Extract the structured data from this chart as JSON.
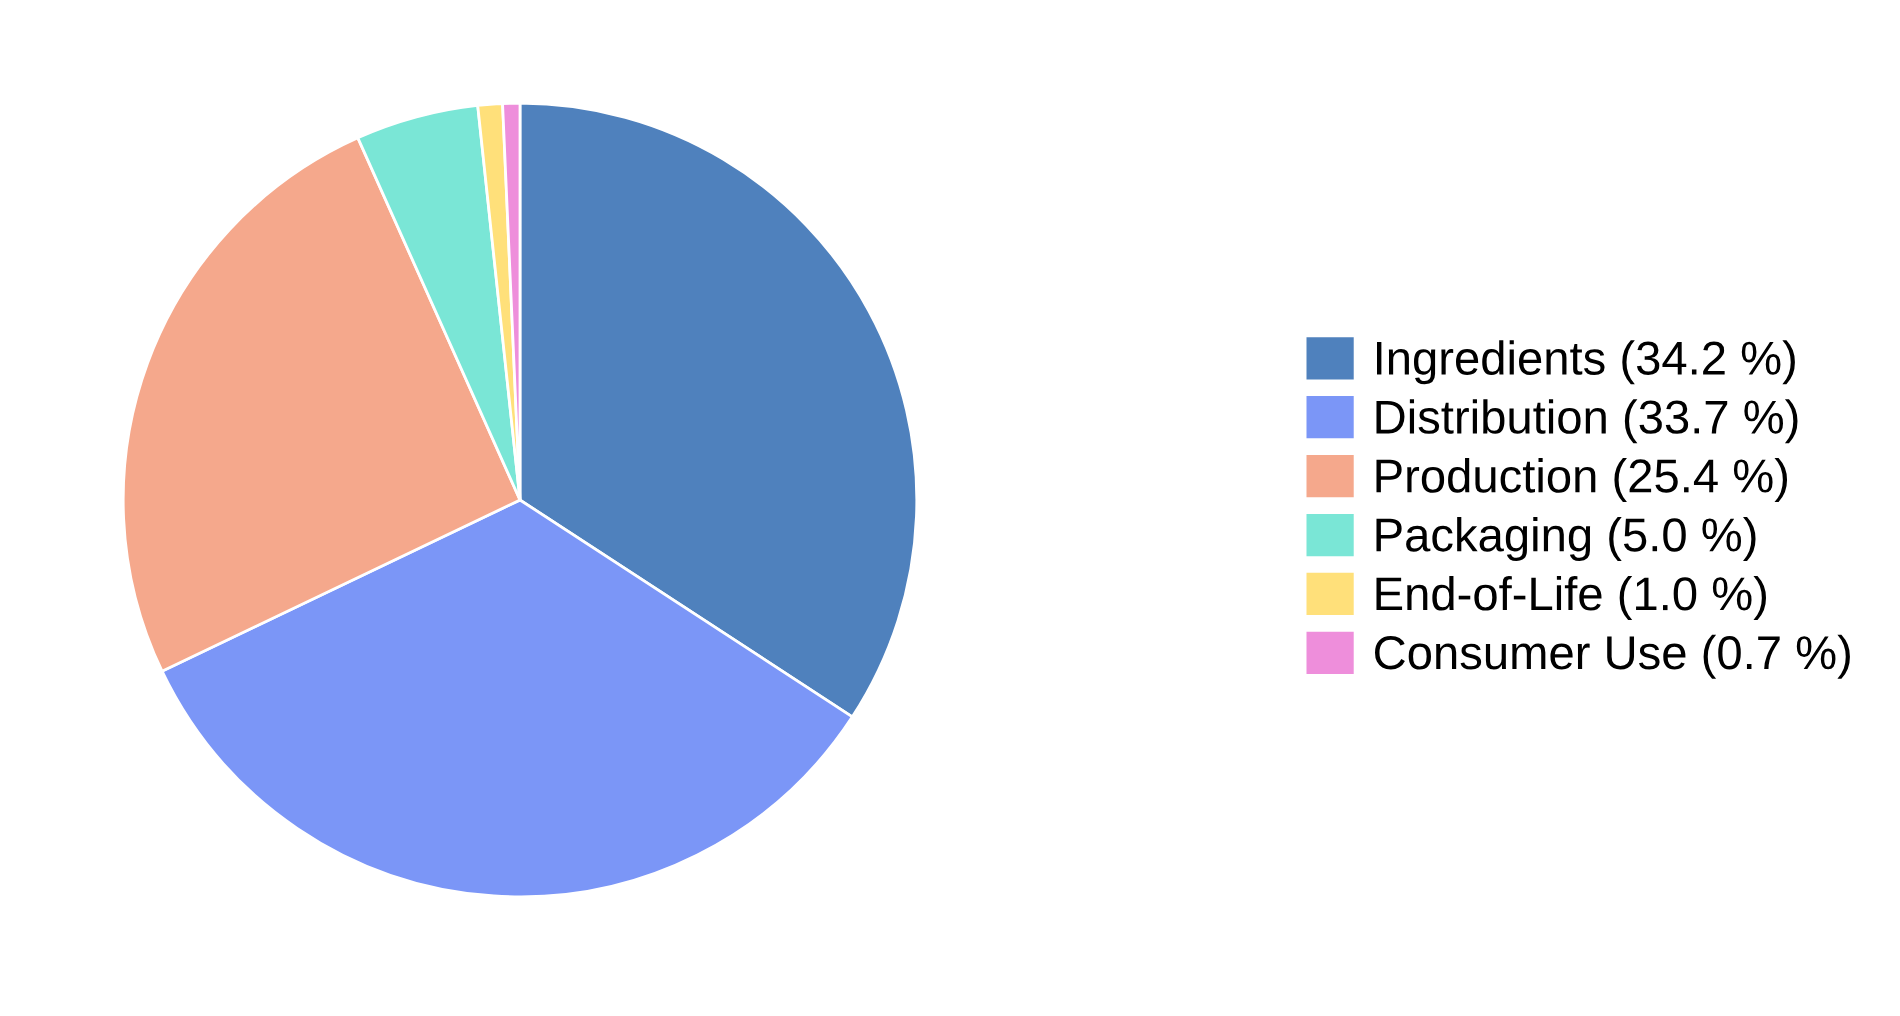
{
  "chart_data": {
    "type": "pie",
    "categories": [
      "Ingredients (34.2 %)",
      "Distribution (33.7 %)",
      "Production (25.4 %)",
      "Packaging (5.0 %)",
      "End-of-Life (1.0 %)",
      "Consumer Use (0.7 %)"
    ],
    "values": [
      34.2,
      33.7,
      25.4,
      5.0,
      1.0,
      0.7
    ],
    "colors": [
      "#4f81bd",
      "#7b96f7",
      "#f5a88c",
      "#7ae6d6",
      "#ffe07a",
      "#ee8edb"
    ],
    "legend": "right"
  }
}
